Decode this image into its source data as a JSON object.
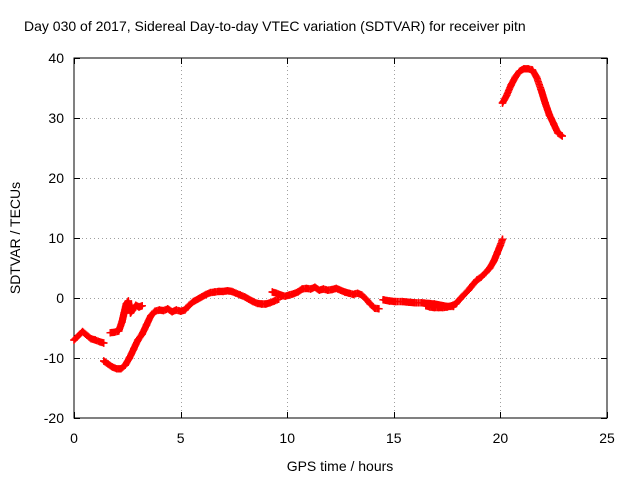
{
  "chart_data": {
    "type": "scatter",
    "title": "Day 030 of 2017, Sidereal Day-to-day VTEC variation (SDTVAR) for receiver pitn",
    "xlabel": "GPS time / hours",
    "ylabel": "SDTVAR / TECUs",
    "xlim": [
      0,
      25
    ],
    "ylim": [
      -20,
      40
    ],
    "xticks": [
      0,
      5,
      10,
      15,
      20,
      25
    ],
    "yticks": [
      -20,
      -10,
      0,
      10,
      20,
      30,
      40
    ],
    "grid": true,
    "marker": "plus",
    "color": "#ff0000",
    "series": [
      {
        "name": "SDTVAR",
        "segments": [
          {
            "x": [
              0.0,
              0.2,
              0.4,
              0.6,
              0.8,
              1.0,
              1.2,
              1.4
            ],
            "y": [
              -7.0,
              -6.3,
              -5.6,
              -6.2,
              -6.8,
              -7.0,
              -7.3,
              -7.5
            ]
          },
          {
            "x": [
              1.4,
              1.6,
              1.8,
              2.0,
              2.2,
              2.4,
              2.6,
              2.8,
              3.0,
              3.2,
              3.4,
              3.6,
              3.8,
              4.0,
              4.2,
              4.4,
              4.6,
              4.8,
              5.0,
              5.2,
              5.4,
              5.6,
              5.8,
              6.0,
              6.2,
              6.4,
              6.6,
              6.8,
              7.0,
              7.2,
              7.4,
              7.6,
              7.8,
              8.0,
              8.2,
              8.4,
              8.6,
              8.8,
              9.0,
              9.2,
              9.4,
              9.6
            ],
            "y": [
              -10.5,
              -11.0,
              -11.5,
              -11.8,
              -11.8,
              -11.2,
              -10.0,
              -8.5,
              -7.0,
              -6.0,
              -4.5,
              -3.0,
              -2.2,
              -2.0,
              -2.1,
              -1.8,
              -2.3,
              -2.0,
              -2.2,
              -2.0,
              -1.2,
              -0.6,
              -0.2,
              0.2,
              0.6,
              0.9,
              1.0,
              1.1,
              1.1,
              1.2,
              1.1,
              0.8,
              0.5,
              0.2,
              -0.2,
              -0.6,
              -0.9,
              -1.0,
              -1.0,
              -0.8,
              -0.5,
              -0.2
            ]
          },
          {
            "x": [
              1.7,
              1.9,
              2.1,
              2.25,
              2.35,
              2.45,
              2.55,
              2.65,
              2.75,
              2.9,
              3.05,
              3.2
            ],
            "y": [
              -5.8,
              -5.7,
              -5.5,
              -4.0,
              -2.5,
              -1.0,
              -0.5,
              -2.5,
              -2.0,
              -1.2,
              -1.5,
              -1.3
            ]
          },
          {
            "x": [
              9.3,
              9.5,
              9.7,
              9.9,
              10.1,
              10.3,
              10.5,
              10.7,
              10.9,
              11.1,
              11.3,
              11.5,
              11.7,
              11.9,
              12.1,
              12.3,
              12.5,
              12.7,
              12.9,
              13.1,
              13.3,
              13.5,
              13.7,
              13.9,
              14.1,
              14.3
            ],
            "y": [
              1.0,
              0.8,
              0.5,
              0.3,
              0.5,
              0.7,
              1.0,
              1.5,
              1.6,
              1.5,
              1.8,
              1.3,
              1.5,
              1.3,
              1.4,
              1.6,
              1.3,
              1.0,
              0.8,
              0.6,
              0.8,
              0.5,
              -0.2,
              -1.0,
              -1.7,
              -1.8
            ]
          },
          {
            "x": [
              14.5,
              14.8,
              15.1,
              15.4,
              15.7,
              16.0,
              16.3,
              16.6,
              16.9,
              17.2,
              17.5,
              17.8
            ],
            "y": [
              -0.3,
              -0.5,
              -0.6,
              -0.6,
              -0.7,
              -0.8,
              -0.8,
              -0.9,
              -1.0,
              -1.2,
              -1.4,
              -1.4
            ]
          },
          {
            "x": [
              16.5,
              16.7,
              16.9,
              17.1,
              17.3,
              17.5,
              17.7,
              17.9,
              18.1,
              18.3,
              18.5,
              18.7,
              18.9,
              19.1,
              19.3,
              19.5,
              19.7,
              19.85,
              20.0,
              20.1
            ],
            "y": [
              -1.3,
              -1.5,
              -1.6,
              -1.6,
              -1.6,
              -1.5,
              -1.3,
              -1.0,
              -0.2,
              0.6,
              1.3,
              2.2,
              3.0,
              3.5,
              4.2,
              5.0,
              6.2,
              7.5,
              8.8,
              9.8
            ]
          },
          {
            "x": [
              20.1,
              20.3,
              20.5,
              20.7,
              20.9,
              21.1,
              21.3,
              21.5,
              21.7,
              21.9,
              22.1,
              22.3,
              22.5,
              22.7,
              22.9
            ],
            "y": [
              32.5,
              33.8,
              35.5,
              36.8,
              37.8,
              38.2,
              38.2,
              38.0,
              36.8,
              34.8,
              32.5,
              30.5,
              29.0,
              27.5,
              27.0
            ]
          }
        ]
      }
    ]
  }
}
